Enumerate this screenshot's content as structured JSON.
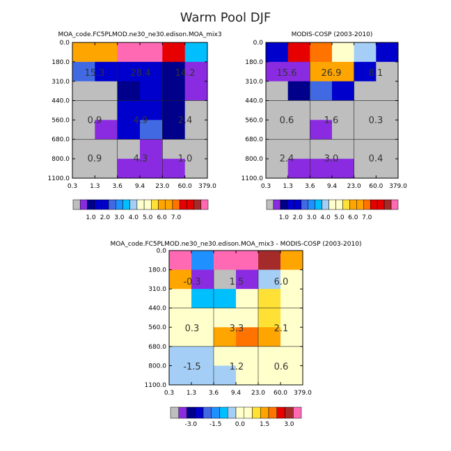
{
  "figure_title": "Warm Pool DJF",
  "chart_data": [
    {
      "type": "heatmap",
      "title": "MOA_code.FC5PLMOD.ne30_ne30.edison.MOA_mix3",
      "x_ticks": [
        "0.3",
        "1.3",
        "3.6",
        "9.4",
        "23.0",
        "60.0",
        "379.0"
      ],
      "y_ticks": [
        "0.0",
        "180.0",
        "310.0",
        "440.0",
        "560.0",
        "680.0",
        "800.0",
        "1100.0"
      ],
      "cells": [
        [
          "orange",
          "orange",
          "pink",
          "pink",
          "red",
          "deepskyblue"
        ],
        [
          "royalblue",
          "blue",
          "blue",
          "blue",
          "navy",
          "blueviolet"
        ],
        [
          "gray",
          "gray",
          "navy",
          "blue",
          "navy",
          "blueviolet"
        ],
        [
          "gray",
          "gray",
          "blue",
          "blue",
          "navy",
          "gray"
        ],
        [
          "gray",
          "blueviolet",
          "blue",
          "royalblue",
          "navy",
          "gray"
        ],
        [
          "gray",
          "gray",
          "gray",
          "blueviolet",
          "gray",
          "gray"
        ],
        [
          "gray",
          "gray",
          "blueviolet",
          "blueviolet",
          "blueviolet",
          "gray"
        ],
        [
          "gray",
          "blueviolet",
          "blue",
          "navy",
          "gray",
          "gray"
        ]
      ],
      "annotations": [
        "15.3",
        "28.4",
        "14.2",
        "0.9",
        "4.9",
        "2.4",
        "0.9",
        "4.3",
        "1.0"
      ],
      "colorbar_labels": [
        "1.0",
        "2.0",
        "3.0",
        "4.0",
        "5.0",
        "6.0",
        "7.0"
      ]
    },
    {
      "type": "heatmap",
      "title": "MODIS-COSP (2003-2010)",
      "x_ticks": [
        "0.3",
        "1.3",
        "3.6",
        "9.4",
        "23.0",
        "60.0",
        "379.0"
      ],
      "y_ticks": [
        "0.0",
        "180.0",
        "310.0",
        "440.0",
        "560.0",
        "680.0",
        "800.0",
        "1100.0"
      ],
      "cells": [
        [
          "blue",
          "red",
          "darkorange",
          "lightyellow",
          "lightblue",
          "blue"
        ],
        [
          "blueviolet",
          "blueviolet",
          "orange",
          "orange",
          "blue",
          "gray"
        ],
        [
          "gray",
          "navy",
          "royalblue",
          "blue",
          "gray",
          "gray"
        ],
        [
          "gray",
          "gray",
          "gray",
          "gray",
          "gray",
          "gray"
        ],
        [
          "gray",
          "gray",
          "blueviolet",
          "gray",
          "gray",
          "gray"
        ],
        [
          "gray",
          "gray",
          "gray",
          "gray",
          "gray",
          "gray"
        ],
        [
          "gray",
          "blueviolet",
          "blueviolet",
          "blueviolet",
          "gray",
          "gray"
        ],
        [
          "gray",
          "navy",
          "navy",
          "gray",
          "gray",
          "gray"
        ]
      ],
      "annotations": [
        "15.6",
        "26.9",
        "8.1",
        "0.6",
        "1.6",
        "0.3",
        "2.4",
        "3.0",
        "0.4"
      ],
      "colorbar_labels": [
        "1.0",
        "2.0",
        "3.0",
        "4.0",
        "5.0",
        "6.0",
        "7.0"
      ]
    },
    {
      "type": "heatmap",
      "title": "MOA_code.FC5PLMOD.ne30_ne30.edison.MOA_mix3 - MODIS-COSP (2003-2010)",
      "x_ticks": [
        "0.3",
        "1.3",
        "3.6",
        "9.4",
        "23.0",
        "60.0",
        "379.0"
      ],
      "y_ticks": [
        "0.0",
        "180.0",
        "310.0",
        "440.0",
        "560.0",
        "680.0",
        "800.0",
        "1100.0"
      ],
      "cells": [
        [
          "pink",
          "dodgerblue",
          "pink",
          "pink",
          "brown",
          "orange"
        ],
        [
          "orange",
          "blueviolet",
          "gray",
          "blueviolet",
          "lightblue",
          "lightyellow"
        ],
        [
          "lightyellow",
          "deepskyblue",
          "deepskyblue",
          "lightyellow",
          "gold",
          "lightyellow"
        ],
        [
          "lightyellow",
          "lightyellow",
          "lightyellow",
          "lightyellow",
          "gold",
          "lightyellow"
        ],
        [
          "lightyellow",
          "lightyellow",
          "orange",
          "darkorange",
          "orange",
          "lightyellow"
        ],
        [
          "lightblue",
          "lightblue",
          "lightyellow",
          "lightyellow",
          "lightyellow",
          "lightyellow"
        ],
        [
          "lightblue",
          "lightblue",
          "lightblue",
          "lightyellow",
          "lightyellow",
          "lightyellow"
        ],
        [
          "lightblue",
          "deepskyblue",
          "gold",
          "gold",
          "lightyellow",
          "lightyellow"
        ]
      ],
      "annotations": [
        "-0.3",
        "1.5",
        "6.0",
        "0.3",
        "3.3",
        "2.1",
        "-1.5",
        "1.2",
        "0.6"
      ],
      "colorbar_labels": [
        "-3.0",
        "-1.5",
        "0.0",
        "1.5",
        "3.0"
      ]
    }
  ],
  "palette": {
    "gray": "#bebebe",
    "blueviolet": "#8a2be2",
    "navy": "#00008b",
    "blue": "#0000cd",
    "royalblue": "#4169e1",
    "dodgerblue": "#1e90ff",
    "deepskyblue": "#00bfff",
    "lightblue": "#a4cef5",
    "lightyellow": "#ffffcc",
    "gold": "#ffe135",
    "orange": "#ffa500",
    "darkorange": "#ff7400",
    "red": "#e60000",
    "brown": "#a52a2a",
    "pink": "#ff69b4"
  },
  "colorbar_abs": [
    "gray",
    "blueviolet",
    "navy",
    "blue",
    "blue",
    "royalblue",
    "dodgerblue",
    "deepskyblue",
    "lightblue",
    "lightyellow",
    "lightyellow",
    "gold",
    "orange",
    "orange",
    "darkorange",
    "red",
    "red",
    "brown",
    "pink"
  ],
  "colorbar_diff": [
    "gray",
    "blueviolet",
    "navy",
    "blue",
    "royalblue",
    "dodgerblue",
    "deepskyblue",
    "lightblue",
    "lightyellow",
    "lightyellow",
    "gold",
    "orange",
    "darkorange",
    "red",
    "brown",
    "pink"
  ]
}
